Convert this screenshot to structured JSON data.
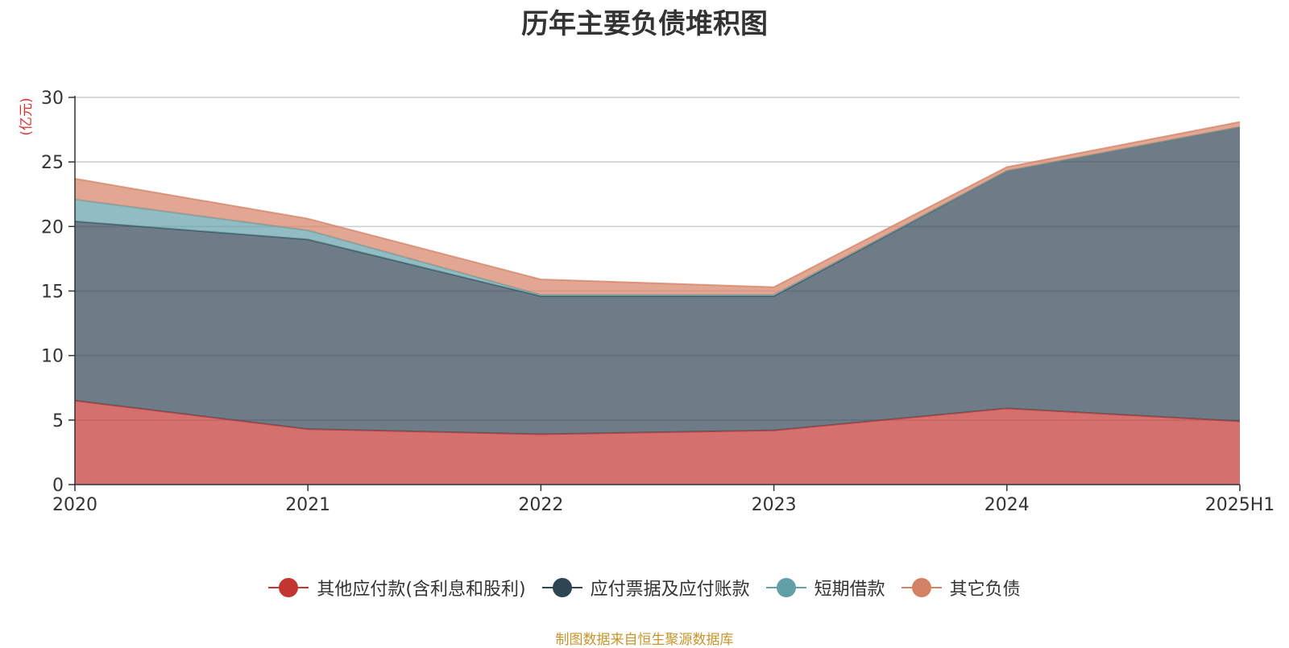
{
  "title": "历年主要负债堆积图",
  "source_text": "制图数据来自恒生聚源数据库",
  "chart_data": {
    "type": "area",
    "stacked": true,
    "ylabel": "(亿元)",
    "ylim": [
      0,
      30
    ],
    "yticks": [
      0,
      5,
      10,
      15,
      20,
      25,
      30
    ],
    "grid": true,
    "legend_position": "bottom",
    "categories": [
      "2020",
      "2021",
      "2022",
      "2023",
      "2024",
      "2025H1"
    ],
    "series": [
      {
        "name": "其他应付款(含利息和股利)",
        "color": "#c23531",
        "values": [
          6.5,
          4.3,
          3.9,
          4.2,
          5.9,
          4.9
        ]
      },
      {
        "name": "应付票据及应付账款",
        "color": "#2f4554",
        "values": [
          13.9,
          14.7,
          10.7,
          10.4,
          18.4,
          22.8
        ]
      },
      {
        "name": "短期借款",
        "color": "#61a0a8",
        "values": [
          1.7,
          0.7,
          0.1,
          0.1,
          0.0,
          0.0
        ]
      },
      {
        "name": "其它负债",
        "color": "#d48265",
        "values": [
          1.6,
          0.9,
          1.2,
          0.6,
          0.3,
          0.4
        ]
      }
    ]
  }
}
